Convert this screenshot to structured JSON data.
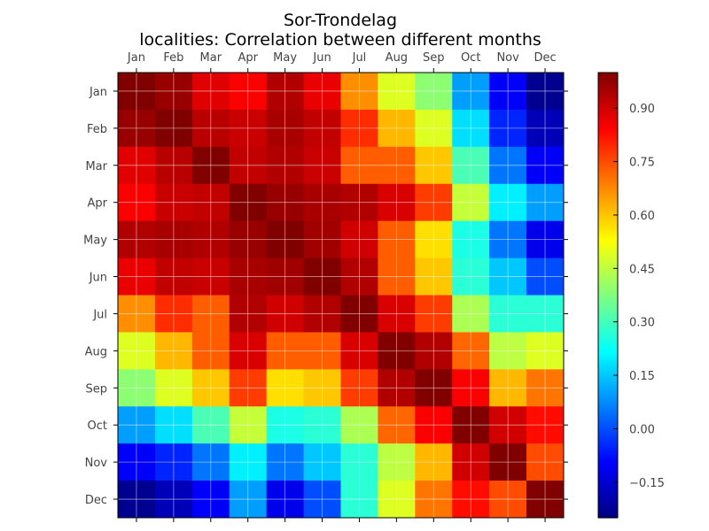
{
  "chart_data": {
    "type": "heatmap",
    "title": "Sor-Trondelag",
    "subtitle": "localities: Correlation between different months",
    "x_categories": [
      "Jan",
      "Feb",
      "Mar",
      "Apr",
      "May",
      "Jun",
      "Jul",
      "Aug",
      "Sep",
      "Oct",
      "Nov",
      "Dec"
    ],
    "y_categories": [
      "Jan",
      "Feb",
      "Mar",
      "Apr",
      "May",
      "Jun",
      "Jul",
      "Aug",
      "Sep",
      "Oct",
      "Nov",
      "Dec"
    ],
    "values": [
      [
        1.0,
        0.97,
        0.88,
        0.85,
        0.94,
        0.87,
        0.67,
        0.49,
        0.39,
        0.1,
        -0.1,
        -0.23
      ],
      [
        0.97,
        1.0,
        0.93,
        0.91,
        0.95,
        0.92,
        0.79,
        0.62,
        0.49,
        0.18,
        -0.05,
        -0.18
      ],
      [
        0.88,
        0.93,
        1.0,
        0.92,
        0.94,
        0.91,
        0.73,
        0.73,
        0.6,
        0.31,
        0.05,
        -0.1
      ],
      [
        0.85,
        0.91,
        0.92,
        1.0,
        0.97,
        0.95,
        0.94,
        0.89,
        0.77,
        0.46,
        0.2,
        0.1
      ],
      [
        0.94,
        0.95,
        0.94,
        0.97,
        1.0,
        0.96,
        0.9,
        0.73,
        0.57,
        0.25,
        0.05,
        -0.12
      ],
      [
        0.87,
        0.92,
        0.91,
        0.95,
        0.96,
        1.0,
        0.94,
        0.73,
        0.6,
        0.27,
        0.15,
        0.0
      ],
      [
        0.67,
        0.79,
        0.73,
        0.94,
        0.9,
        0.94,
        1.0,
        0.89,
        0.77,
        0.43,
        0.27,
        0.27
      ],
      [
        0.49,
        0.62,
        0.73,
        0.89,
        0.73,
        0.73,
        0.89,
        1.0,
        0.94,
        0.72,
        0.45,
        0.49
      ],
      [
        0.39,
        0.49,
        0.6,
        0.77,
        0.57,
        0.6,
        0.77,
        0.94,
        1.0,
        0.85,
        0.62,
        0.7
      ],
      [
        0.1,
        0.18,
        0.31,
        0.46,
        0.25,
        0.27,
        0.43,
        0.72,
        0.85,
        1.0,
        0.9,
        0.83
      ],
      [
        -0.1,
        -0.05,
        0.05,
        0.2,
        0.05,
        0.15,
        0.27,
        0.45,
        0.62,
        0.9,
        1.0,
        0.75
      ],
      [
        -0.23,
        -0.18,
        -0.1,
        0.1,
        -0.12,
        0.0,
        0.27,
        0.49,
        0.7,
        0.83,
        0.75,
        1.0
      ]
    ],
    "colormap": "jet",
    "value_range": [
      -0.25,
      1.0
    ],
    "colorbar_ticks": [
      "0.90",
      "0.75",
      "0.60",
      "0.45",
      "0.30",
      "0.15",
      "0.00",
      "−0.15"
    ],
    "grid": true
  }
}
